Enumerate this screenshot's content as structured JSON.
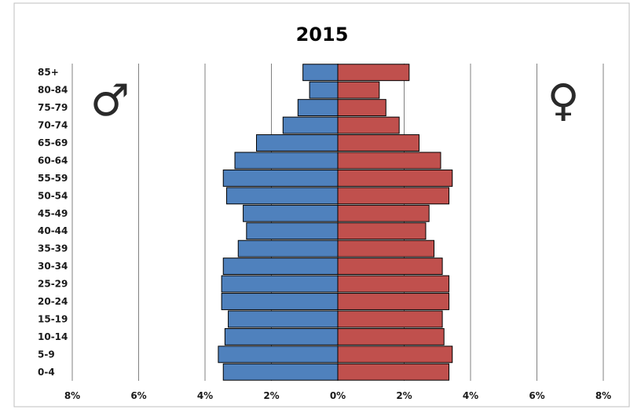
{
  "chart_data": {
    "type": "bar",
    "orientation": "horizontal",
    "layout": "population-pyramid",
    "title": "2015",
    "categories": [
      "0-4",
      "5-9",
      "10-14",
      "15-19",
      "20-24",
      "25-29",
      "30-34",
      "35-39",
      "40-44",
      "45-49",
      "50-54",
      "55-59",
      "60-64",
      "65-69",
      "70-74",
      "75-79",
      "80-84",
      "85+"
    ],
    "series": [
      {
        "side": "left",
        "symbol": "♂",
        "color": "#4F81BD",
        "values": [
          3.45,
          3.6,
          3.4,
          3.3,
          3.5,
          3.5,
          3.45,
          3.0,
          2.75,
          2.85,
          3.35,
          3.45,
          3.1,
          2.45,
          1.65,
          1.2,
          0.85,
          1.05
        ]
      },
      {
        "side": "right",
        "symbol": "♀",
        "color": "#C0504D",
        "values": [
          3.35,
          3.45,
          3.2,
          3.15,
          3.35,
          3.35,
          3.15,
          2.9,
          2.65,
          2.75,
          3.35,
          3.45,
          3.1,
          2.45,
          1.85,
          1.45,
          1.25,
          2.15
        ]
      }
    ],
    "xlim": [
      -8,
      8
    ],
    "xticks": [
      {
        "value": -8,
        "label": "8%"
      },
      {
        "value": -6,
        "label": "6%"
      },
      {
        "value": -4,
        "label": "4%"
      },
      {
        "value": -2,
        "label": "2%"
      },
      {
        "value": 0,
        "label": "0%"
      },
      {
        "value": 2,
        "label": "2%"
      },
      {
        "value": 4,
        "label": "4%"
      },
      {
        "value": 6,
        "label": "6%"
      },
      {
        "value": 8,
        "label": "8%"
      }
    ],
    "grid": "vertical",
    "colors": {
      "gridline": "#808080",
      "bar_border": "#000000",
      "frame": "#bfbfbf"
    }
  }
}
